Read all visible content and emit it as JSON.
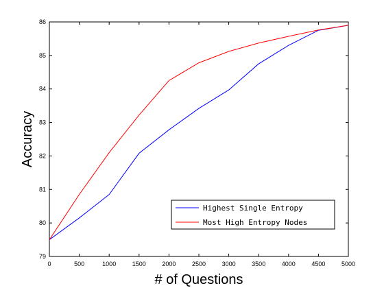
{
  "chart_data": {
    "type": "line",
    "xlabel": "# of Questions",
    "ylabel": "Accuracy",
    "xlim": [
      0,
      5000
    ],
    "ylim": [
      79,
      86
    ],
    "xticks": [
      "0",
      "500",
      "1000",
      "1500",
      "2000",
      "2500",
      "3000",
      "3500",
      "4000",
      "4500",
      "5000"
    ],
    "yticks": [
      "79",
      "80",
      "81",
      "82",
      "83",
      "84",
      "85",
      "86"
    ],
    "grid": false,
    "legend_position": "lower-right",
    "x": [
      0,
      500,
      1000,
      1500,
      2000,
      2500,
      3000,
      3500,
      4000,
      4500,
      5000
    ],
    "series": [
      {
        "name": "Highest Single Entropy",
        "color": "#0000ff",
        "values": [
          79.5,
          80.15,
          80.85,
          82.08,
          82.78,
          83.42,
          83.97,
          84.75,
          85.3,
          85.75,
          85.9
        ]
      },
      {
        "name": "Most High Entropy Nodes",
        "color": "#ff0000",
        "values": [
          79.5,
          80.85,
          82.1,
          83.22,
          84.25,
          84.78,
          85.12,
          85.37,
          85.57,
          85.76,
          85.9
        ]
      }
    ]
  }
}
